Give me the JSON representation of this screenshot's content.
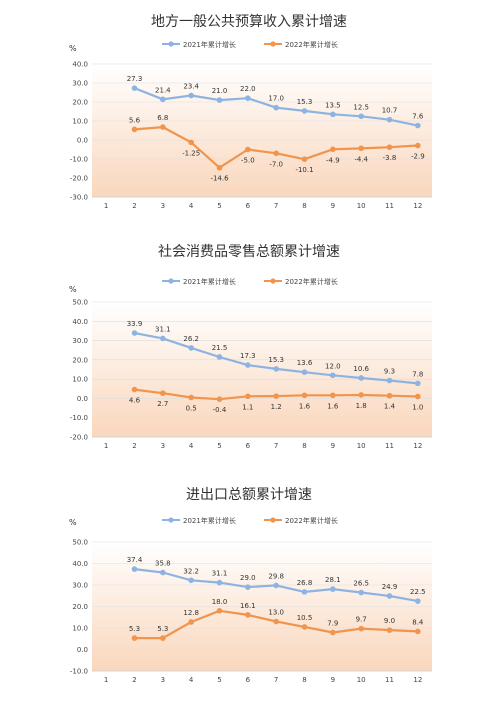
{
  "unit_label": "%",
  "colors": {
    "series_2021": "#8DB3E2",
    "series_2022": "#F0944E",
    "band_light": "#FDEBDD",
    "band_dark": "#F6B686",
    "grid": "#DDDDDD"
  },
  "chart_data": [
    {
      "type": "line",
      "title": "地方一般公共预算收入累计增速",
      "x": [
        "1",
        "2",
        "3",
        "4",
        "5",
        "6",
        "7",
        "8",
        "9",
        "10",
        "11",
        "12"
      ],
      "ylim": [
        -30,
        40
      ],
      "yticks": [
        "40.0",
        "30.0",
        "20.0",
        "10.0",
        "0.0",
        "-10.0",
        "-20.0",
        "-30.0"
      ],
      "ytick_values": [
        40,
        30,
        20,
        10,
        0,
        -10,
        -20,
        -30
      ],
      "legend_position": "top",
      "series": [
        {
          "name": "2021年累计增长",
          "x": [
            "2",
            "3",
            "4",
            "5",
            "6",
            "7",
            "8",
            "9",
            "10",
            "11",
            "12"
          ],
          "values": [
            27.3,
            21.4,
            23.4,
            21.0,
            22.0,
            17.0,
            15.3,
            13.5,
            12.5,
            10.7,
            7.6
          ],
          "labels": [
            "27.3",
            "21.4",
            "23.4",
            "21.0",
            "22.0",
            "17.0",
            "15.3",
            "13.5",
            "12.5",
            "10.7",
            "7.6"
          ]
        },
        {
          "name": "2022年累计增长",
          "x": [
            "2",
            "3",
            "4",
            "5",
            "6",
            "7",
            "8",
            "9",
            "10",
            "11",
            "12"
          ],
          "values": [
            5.6,
            6.8,
            -1.25,
            -14.6,
            -5.0,
            -7.0,
            -10.1,
            -4.9,
            -4.4,
            -3.8,
            -2.9
          ],
          "labels": [
            "5.6",
            "6.8",
            "-1.25",
            "-14.6",
            "-5.0",
            "-7.0",
            "-10.1",
            "-4.9",
            "-4.4",
            "-3.8",
            "-2.9"
          ]
        }
      ]
    },
    {
      "type": "line",
      "title": "社会消费品零售总额累计增速",
      "x": [
        "1",
        "2",
        "3",
        "4",
        "5",
        "6",
        "7",
        "8",
        "9",
        "10",
        "11",
        "12"
      ],
      "ylim": [
        -20,
        50
      ],
      "yticks": [
        "50.0",
        "40.0",
        "30.0",
        "20.0",
        "10.0",
        "0.0",
        "-10.0",
        "-20.0"
      ],
      "ytick_values": [
        50,
        40,
        30,
        20,
        10,
        0,
        -10,
        -20
      ],
      "legend_position": "top",
      "series": [
        {
          "name": "2021年累计增长",
          "x": [
            "2",
            "3",
            "4",
            "5",
            "6",
            "7",
            "8",
            "9",
            "10",
            "11",
            "12"
          ],
          "values": [
            33.9,
            31.1,
            26.2,
            21.5,
            17.3,
            15.3,
            13.6,
            12.0,
            10.6,
            9.3,
            7.8
          ],
          "labels": [
            "33.9",
            "31.1",
            "26.2",
            "21.5",
            "17.3",
            "15.3",
            "13.6",
            "12.0",
            "10.6",
            "9.3",
            "7.8"
          ]
        },
        {
          "name": "2022年累计增长",
          "x": [
            "2",
            "3",
            "4",
            "5",
            "6",
            "7",
            "8",
            "9",
            "10",
            "11",
            "12"
          ],
          "values": [
            4.6,
            2.7,
            0.5,
            -0.4,
            1.1,
            1.2,
            1.6,
            1.6,
            1.8,
            1.4,
            1.0
          ],
          "labels": [
            "4.6",
            "2.7",
            "0.5",
            "-0.4",
            "1.1",
            "1.2",
            "1.6",
            "1.6",
            "1.8",
            "1.4",
            "1.0"
          ]
        }
      ]
    },
    {
      "type": "line",
      "title": "进出口总额累计增速",
      "x": [
        "1",
        "2",
        "3",
        "4",
        "5",
        "6",
        "7",
        "8",
        "9",
        "10",
        "11",
        "12"
      ],
      "ylim": [
        -10,
        50
      ],
      "yticks": [
        "50.0",
        "40.0",
        "30.0",
        "20.0",
        "10.0",
        "0.0",
        "-10.0"
      ],
      "ytick_values": [
        50,
        40,
        30,
        20,
        10,
        0,
        -10
      ],
      "legend_position": "top",
      "series": [
        {
          "name": "2021年累计增长",
          "x": [
            "2",
            "3",
            "4",
            "5",
            "6",
            "7",
            "8",
            "9",
            "10",
            "11",
            "12"
          ],
          "values": [
            37.4,
            35.8,
            32.2,
            31.1,
            29.0,
            29.8,
            26.8,
            28.1,
            26.5,
            24.9,
            22.5
          ],
          "labels": [
            "37.4",
            "35.8",
            "32.2",
            "31.1",
            "29.0",
            "29.8",
            "26.8",
            "28.1",
            "26.5",
            "24.9",
            "22.5"
          ]
        },
        {
          "name": "2022年累计增长",
          "x": [
            "2",
            "3",
            "4",
            "5",
            "6",
            "7",
            "8",
            "9",
            "10",
            "11",
            "12"
          ],
          "values": [
            5.3,
            5.3,
            12.8,
            18.0,
            16.1,
            13.0,
            10.5,
            7.9,
            9.7,
            9.0,
            8.4
          ],
          "labels": [
            "5.3",
            "5.3",
            "12.8",
            "18.0",
            "16.1",
            "13.0",
            "10.5",
            "7.9",
            "9.7",
            "9.0",
            "8.4"
          ]
        }
      ]
    }
  ]
}
